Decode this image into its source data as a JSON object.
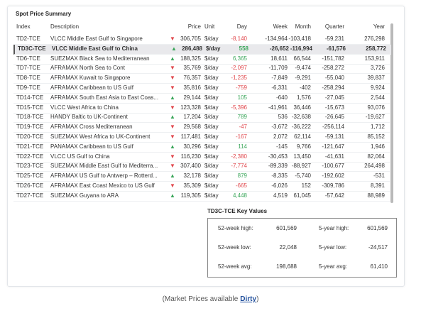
{
  "header": {
    "title": "Spot Price Summary"
  },
  "table": {
    "columns": [
      "Index",
      "Description",
      "Price",
      "Unit",
      "Day",
      "Week",
      "Month",
      "Quarter",
      "Year"
    ],
    "selected_row": 1,
    "rows": [
      [
        "TD2-TCE",
        "VLCC Middle East Gulf to Singapore",
        "306,705",
        "$/day",
        "-8,140",
        "-134,964",
        "-103,418",
        "-59,231",
        "276,298"
      ],
      [
        "TD3C-TCE",
        "VLCC Middle East Gulf to China",
        "286,488",
        "$/day",
        "558",
        "-26,652",
        "-116,994",
        "-61,576",
        "258,772"
      ],
      [
        "TD6-TCE",
        "SUEZMAX Black Sea to Mediterranean",
        "188,325",
        "$/day",
        "6,365",
        "18,611",
        "66,544",
        "-151,782",
        "153,911"
      ],
      [
        "TD7-TCE",
        "AFRAMAX North Sea to Cont",
        "35,769",
        "$/day",
        "-2,097",
        "-11,709",
        "-9,474",
        "-258,272",
        "3,726"
      ],
      [
        "TD8-TCE",
        "AFRAMAX Kuwait to Singapore",
        "76,357",
        "$/day",
        "-1,235",
        "-7,849",
        "-9,291",
        "-55,040",
        "39,837"
      ],
      [
        "TD9-TCE",
        "AFRAMAX Caribbean to US Gulf",
        "35,816",
        "$/day",
        "-759",
        "-6,331",
        "-402",
        "-258,294",
        "9,924"
      ],
      [
        "TD14-TCE",
        "AFRAMAX South East Asia to East Coas...",
        "29,144",
        "$/day",
        "105",
        "-640",
        "1,576",
        "-27,045",
        "2,544"
      ],
      [
        "TD15-TCE",
        "VLCC West Africa to China",
        "123,328",
        "$/day",
        "-5,396",
        "-41,961",
        "36,446",
        "-15,673",
        "93,076"
      ],
      [
        "TD18-TCE",
        "HANDY Baltic to UK-Continent",
        "17,204",
        "$/day",
        "789",
        "536",
        "-32,638",
        "-26,645",
        "-19,627"
      ],
      [
        "TD19-TCE",
        "AFRAMAX Cross Mediterranean",
        "29,568",
        "$/day",
        "-47",
        "-3,672",
        "-36,222",
        "-256,114",
        "1,712"
      ],
      [
        "TD20-TCE",
        "SUEZMAX West Africa to UK-Continent",
        "117,481",
        "$/day",
        "-167",
        "2,072",
        "62,114",
        "-59,131",
        "85,152"
      ],
      [
        "TD21-TCE",
        "PANAMAX Caribbean to US Gulf",
        "30,296",
        "$/day",
        "114",
        "-145",
        "9,766",
        "-121,647",
        "1,946"
      ],
      [
        "TD22-TCE",
        "VLCC US Gulf to China",
        "116,230",
        "$/day",
        "-2,380",
        "-30,453",
        "13,450",
        "-41,631",
        "82,064"
      ],
      [
        "TD23-TCE",
        "SUEZMAX Middle East Gulf to Mediterra...",
        "307,400",
        "$/day",
        "-7,774",
        "-89,339",
        "-88,927",
        "-100,677",
        "264,498"
      ],
      [
        "TD25-TCE",
        "AFRAMAX US Gulf to Antwerp – Rotterd...",
        "32,178",
        "$/day",
        "879",
        "-8,335",
        "-5,740",
        "-192,602",
        "-531"
      ],
      [
        "TD26-TCE",
        "AFRAMAX East Coast Mexico to US Gulf",
        "35,309",
        "$/day",
        "-665",
        "-6,026",
        "152",
        "-309,786",
        "8,391"
      ],
      [
        "TD27-TCE",
        "SUEZMAX Guyana to ARA",
        "119,305",
        "$/day",
        "4,448",
        "4,519",
        "61,045",
        "-57,642",
        "88,989"
      ]
    ]
  },
  "key_values": {
    "title": "TD3C-TCE Key Values",
    "rows": [
      [
        {
          "label": "52-week high:",
          "value": "601,569"
        },
        {
          "label": "5-year high:",
          "value": "601,569"
        }
      ],
      [
        {
          "label": "52-week low:",
          "value": "22,048"
        },
        {
          "label": "5-year low:",
          "value": "-24,517"
        }
      ],
      [
        {
          "label": "52-week avg:",
          "value": "198,688"
        },
        {
          "label": "5-year avg:",
          "value": "61,410"
        }
      ]
    ]
  },
  "footer": {
    "text": "(Market Prices available",
    "link": "Dirty",
    "close": ")"
  }
}
